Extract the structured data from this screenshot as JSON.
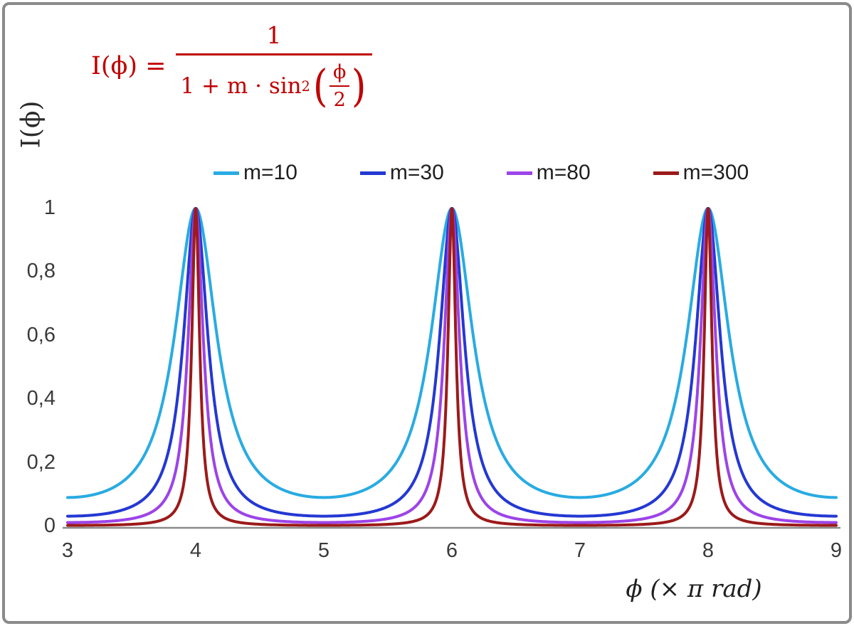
{
  "formula": {
    "lhs": "I(ϕ) =",
    "numerator": "1",
    "den_prefix": "1 + m · sin",
    "den_sup": "2",
    "open_paren": "(",
    "close_paren": ")",
    "inner_num": "ϕ",
    "inner_den": "2",
    "color": "#C00000"
  },
  "axes": {
    "ylabel": "I(ϕ)",
    "xlabel": "ϕ  (× π rad)"
  },
  "chart_data": {
    "type": "line",
    "title": "",
    "formula_text": "I(φ) = 1 / (1 + m·sin²(φ/2))",
    "function": "y = 1 / (1 + m * sin^2(x*π/2)) with x expressed in units of π rad",
    "xlabel": "φ (× π rad)",
    "ylabel": "I(φ)",
    "x_range": [
      3,
      9
    ],
    "ylim": [
      0,
      1
    ],
    "peaks_at_x": [
      4,
      6,
      8
    ],
    "peak_value": 1,
    "grid": false,
    "legend_position": "top-center",
    "axis_line_color": "#8a8a8a",
    "x_ticks": [
      {
        "value": 3,
        "label": "3"
      },
      {
        "value": 4,
        "label": "4"
      },
      {
        "value": 5,
        "label": "5"
      },
      {
        "value": 6,
        "label": "6"
      },
      {
        "value": 7,
        "label": "7"
      },
      {
        "value": 8,
        "label": "8"
      },
      {
        "value": 9,
        "label": "9"
      }
    ],
    "y_ticks": [
      {
        "value": 0,
        "label": "0"
      },
      {
        "value": 0.2,
        "label": "0,2"
      },
      {
        "value": 0.4,
        "label": "0,4"
      },
      {
        "value": 0.6,
        "label": "0,6"
      },
      {
        "value": 0.8,
        "label": "0,8"
      },
      {
        "value": 1,
        "label": "1"
      }
    ],
    "series": [
      {
        "name": "m=10",
        "m": 10,
        "color": "#29ABE2"
      },
      {
        "name": "m=30",
        "m": 30,
        "color": "#2438D2"
      },
      {
        "name": "m=80",
        "m": 80,
        "color": "#9C44E8"
      },
      {
        "name": "m=300",
        "m": 300,
        "color": "#9C1A1A"
      }
    ]
  }
}
